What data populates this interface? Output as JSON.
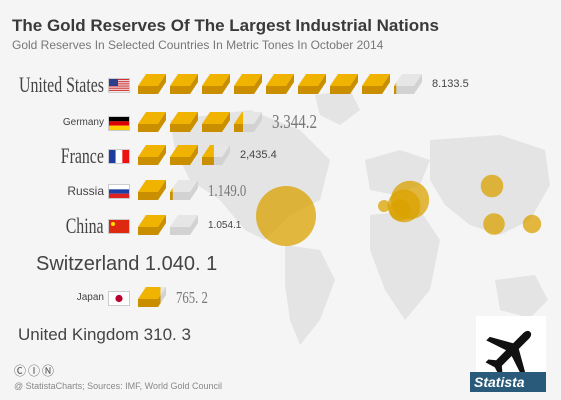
{
  "header": {
    "title": "The Gold Reserves Of The Largest Industrial Nations",
    "subtitle": "Gold Reserves In Selected Countries In Metric Tones In October 2014"
  },
  "colors": {
    "gold": "#f0b400",
    "gold_dark": "#c98f00",
    "bar_empty": "#e6e6e6",
    "circle": "#d9a200",
    "map": "#e2e2e2"
  },
  "chart_data": {
    "type": "bar",
    "unit": "metric tons",
    "categories": [
      "United States",
      "Germany",
      "France",
      "Russia",
      "China",
      "Switzerland",
      "Japan",
      "United Kingdom"
    ],
    "values": [
      8133.5,
      3344.2,
      2435.4,
      1149.0,
      1054.1,
      1040.1,
      765.2,
      310.3
    ],
    "value_labels": [
      "8.133.5",
      "3.344.2",
      "2,435.4",
      "1.149.0",
      "1.054.1",
      "1.040. 1",
      "765. 2",
      "310. 3"
    ],
    "bar_unit_tons": 1000,
    "flags": [
      "us-flag-icon",
      "de-flag-icon",
      "fr-flag-icon",
      "ru-flag-icon",
      "cn-flag-icon",
      "",
      "jp-flag-icon",
      ""
    ]
  },
  "footer": {
    "icons": "ⒸⒾⓃ",
    "source": "@ StatistaCharts; Sources: IMF, World Gold Council",
    "brand": "Statista",
    "plane_icon": "airplane-icon"
  }
}
